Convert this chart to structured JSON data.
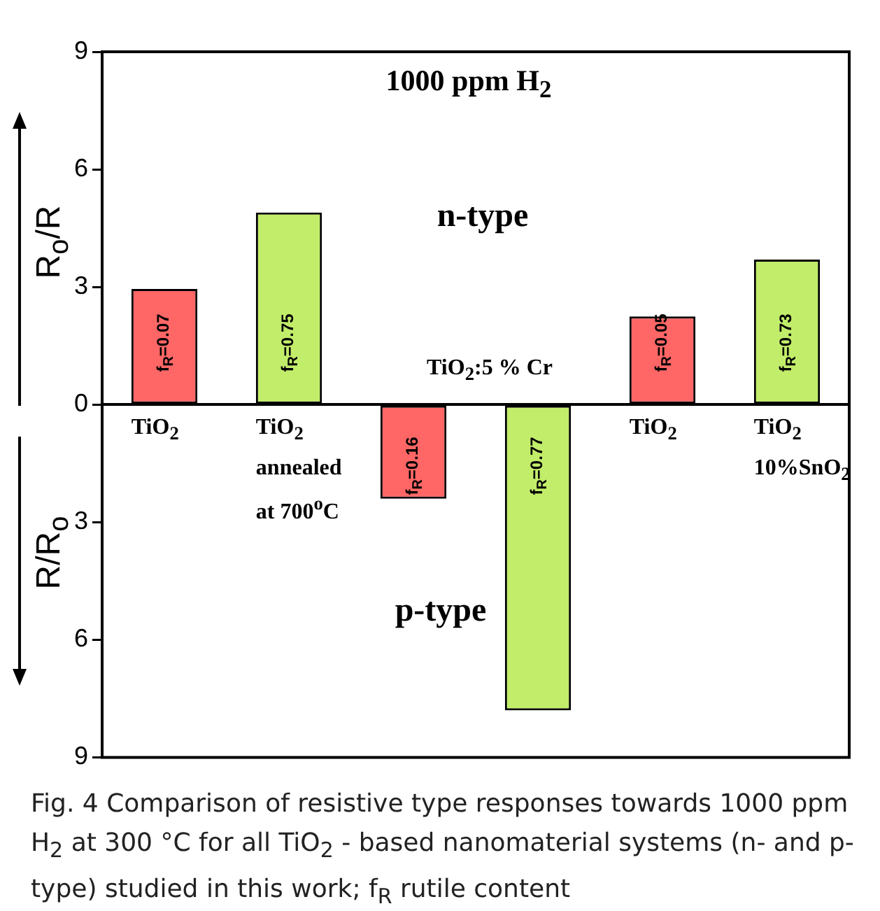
{
  "chart_data": {
    "type": "bar",
    "categories": [
      "TiO$_{2}$",
      "TiO$_{2}$\nannealed\nat 700$^{o}$C",
      null,
      null,
      "TiO$_{2}$",
      "TiO$_{2}$\n10%SnO$_{2}$"
    ],
    "series": [
      {
        "name": "f$_{R}$=0.07",
        "color": "#ff6666",
        "values": [
          2.95,
          null,
          null,
          null,
          null,
          null
        ]
      },
      {
        "name": "f$_{R}$=0.75",
        "color": "#c2ed6a",
        "values": [
          null,
          4.9,
          null,
          null,
          null,
          null
        ]
      },
      {
        "name": "f$_{R}$=0.16",
        "color": "#ff6666",
        "values": [
          null,
          null,
          -2.4,
          null,
          null,
          null
        ]
      },
      {
        "name": "f$_{R}$=0.77",
        "color": "#c2ed6a",
        "values": [
          null,
          null,
          null,
          -7.8,
          null,
          null
        ]
      },
      {
        "name": "f$_{R}$=0.05",
        "color": "#ff6666",
        "values": [
          null,
          null,
          null,
          null,
          2.25,
          null
        ]
      },
      {
        "name": "f$_{R}$=0.73",
        "color": "#c2ed6a",
        "values": [
          null,
          null,
          null,
          null,
          null,
          3.7
        ]
      }
    ],
    "ylabel": "R$_{o}$/R",
    "ylim": [
      -9,
      9
    ],
    "yticks": [
      {
        "value": -9,
        "label": "9"
      },
      {
        "value": -6,
        "label": "6"
      },
      {
        "value": -3,
        "label": "3"
      },
      0,
      3,
      6,
      9
    ],
    "annotations": [
      "1000 ppm H$_{2}$",
      "n-type",
      "TiO$_{2}$:5 % Cr",
      "p-type",
      "R/R$_{o}$",
      "Fig. 4 Comparison of resistive type responses towards 1000 ppm H$_{2}$ at 300 °C for all TiO$_{2}$ - based nanomaterial systems (n- and p-type) studied in this work; f$_{R}$ rutile content"
    ],
    "grid": false,
    "legend": false
  }
}
